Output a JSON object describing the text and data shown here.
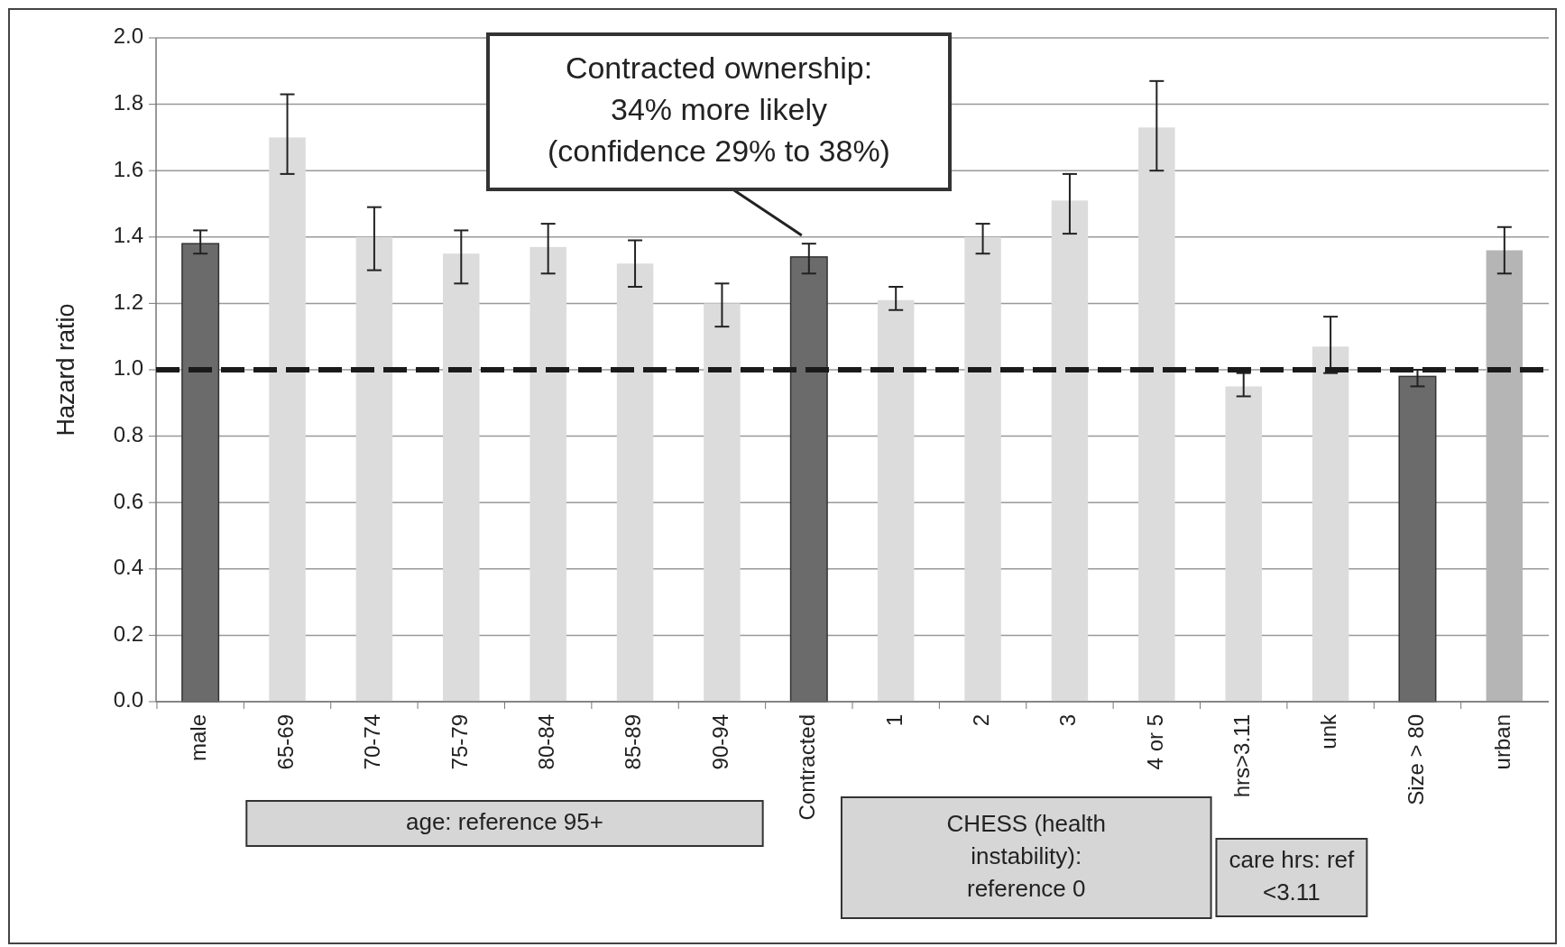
{
  "chart_data": {
    "type": "bar",
    "ylabel": "Hazard ratio",
    "categories": [
      "male",
      "65-69",
      "70-74",
      "75-79",
      "80-84",
      "85-89",
      "90-94",
      "Contracted",
      "1",
      "2",
      "3",
      "4 or 5",
      "hrs>3.11",
      "unk",
      "Size > 80",
      "urban"
    ],
    "values": [
      1.38,
      1.7,
      1.4,
      1.35,
      1.37,
      1.32,
      1.2,
      1.34,
      1.21,
      1.4,
      1.51,
      1.73,
      0.95,
      1.07,
      0.98,
      1.36
    ],
    "colors": [
      "#6b6b6b",
      "#dcdcdc",
      "#dcdcdc",
      "#dcdcdc",
      "#dcdcdc",
      "#dcdcdc",
      "#dcdcdc",
      "#6b6b6b",
      "#dcdcdc",
      "#dcdcdc",
      "#dcdcdc",
      "#dcdcdc",
      "#dcdcdc",
      "#dcdcdc",
      "#6b6b6b",
      "#b5b5b5"
    ],
    "errors": [
      [
        1.35,
        1.42
      ],
      [
        1.59,
        1.83
      ],
      [
        1.3,
        1.49
      ],
      [
        1.26,
        1.42
      ],
      [
        1.29,
        1.44
      ],
      [
        1.25,
        1.39
      ],
      [
        1.13,
        1.26
      ],
      [
        1.29,
        1.38
      ],
      [
        1.18,
        1.25
      ],
      [
        1.35,
        1.44
      ],
      [
        1.41,
        1.59
      ],
      [
        1.6,
        1.87
      ],
      [
        0.92,
        0.99
      ],
      [
        0.99,
        1.16
      ],
      [
        0.95,
        1.0
      ],
      [
        1.29,
        1.43
      ]
    ],
    "ylim": [
      0,
      2
    ],
    "yticks": [
      {
        "value": 0,
        "label": "0.0"
      },
      {
        "value": 0.2,
        "label": "0.2"
      },
      {
        "value": 0.4,
        "label": "0.4"
      },
      {
        "value": 0.6,
        "label": "0.6"
      },
      {
        "value": 0.8,
        "label": "0.8"
      },
      {
        "value": 1,
        "label": "1.0"
      },
      {
        "value": 1.2,
        "label": "1.2"
      },
      {
        "value": 1.4,
        "label": "1.4"
      },
      {
        "value": 1.6,
        "label": "1.6"
      },
      {
        "value": 1.8,
        "label": "1.8"
      },
      {
        "value": 2,
        "label": "2.0"
      }
    ],
    "grid": "y",
    "ref_lines": [
      {
        "axis": "y",
        "value": 1,
        "color": "#1a1a1a",
        "line_style": "dashed"
      }
    ],
    "annotations": [
      {
        "text": "Contracted ownership:\n34% more likely\n(confidence 29% to 38%)",
        "x": "Contracted",
        "y": 1.34
      },
      "age: reference 95+",
      "CHESS (health\ninstability):\nreference 0",
      "care hrs: ref\n<3.11"
    ]
  }
}
